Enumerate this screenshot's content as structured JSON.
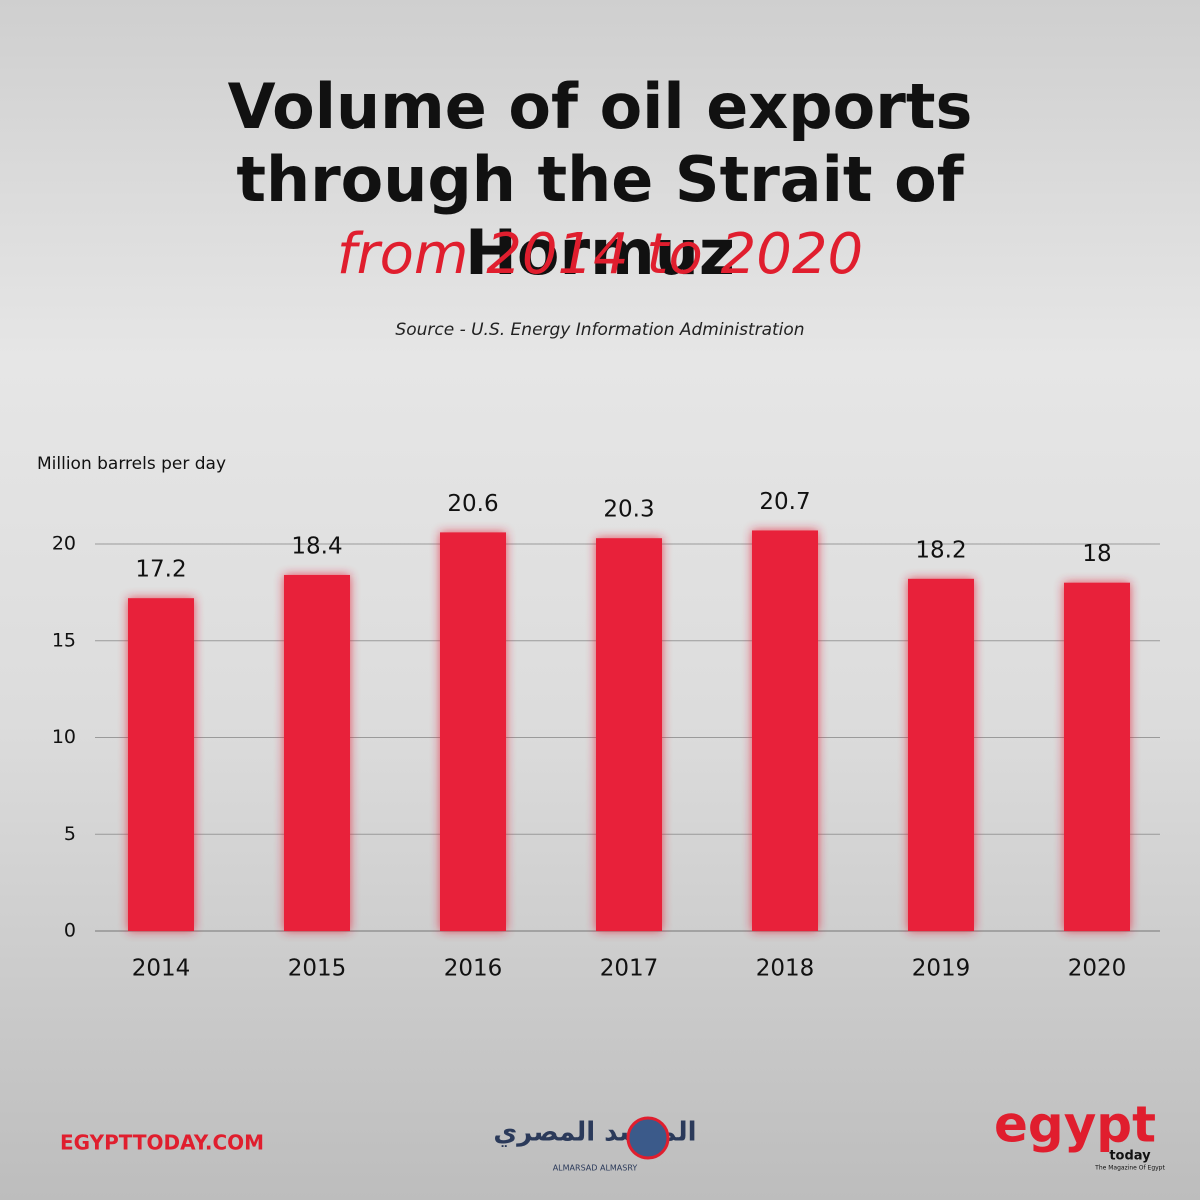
{
  "chart_data": {
    "type": "bar",
    "title": "Volume of oil exports through the Strait of Hormuz",
    "subtitle": "from 2014 to 2020",
    "source": "Source -  U.S. Energy Information Administration",
    "y_label": "Million barrels per day",
    "categories": [
      "2014",
      "2015",
      "2016",
      "2017",
      "2018",
      "2019",
      "2020"
    ],
    "values": [
      17.2,
      18.4,
      20.6,
      20.3,
      20.7,
      18.2,
      18
    ],
    "color": "#e8213a",
    "ylim": [
      0,
      21
    ],
    "yticks": [
      0,
      5,
      10,
      15,
      20
    ],
    "grid": true
  },
  "footer": {
    "site": "EGYPTTODAY.COM",
    "partner": "المرصد المصري",
    "partner_latin": "ALMARSAD ALMASRY",
    "brand": "egypt",
    "brand_sub": "today",
    "brand_tagline": "The Magazine Of Egypt"
  }
}
